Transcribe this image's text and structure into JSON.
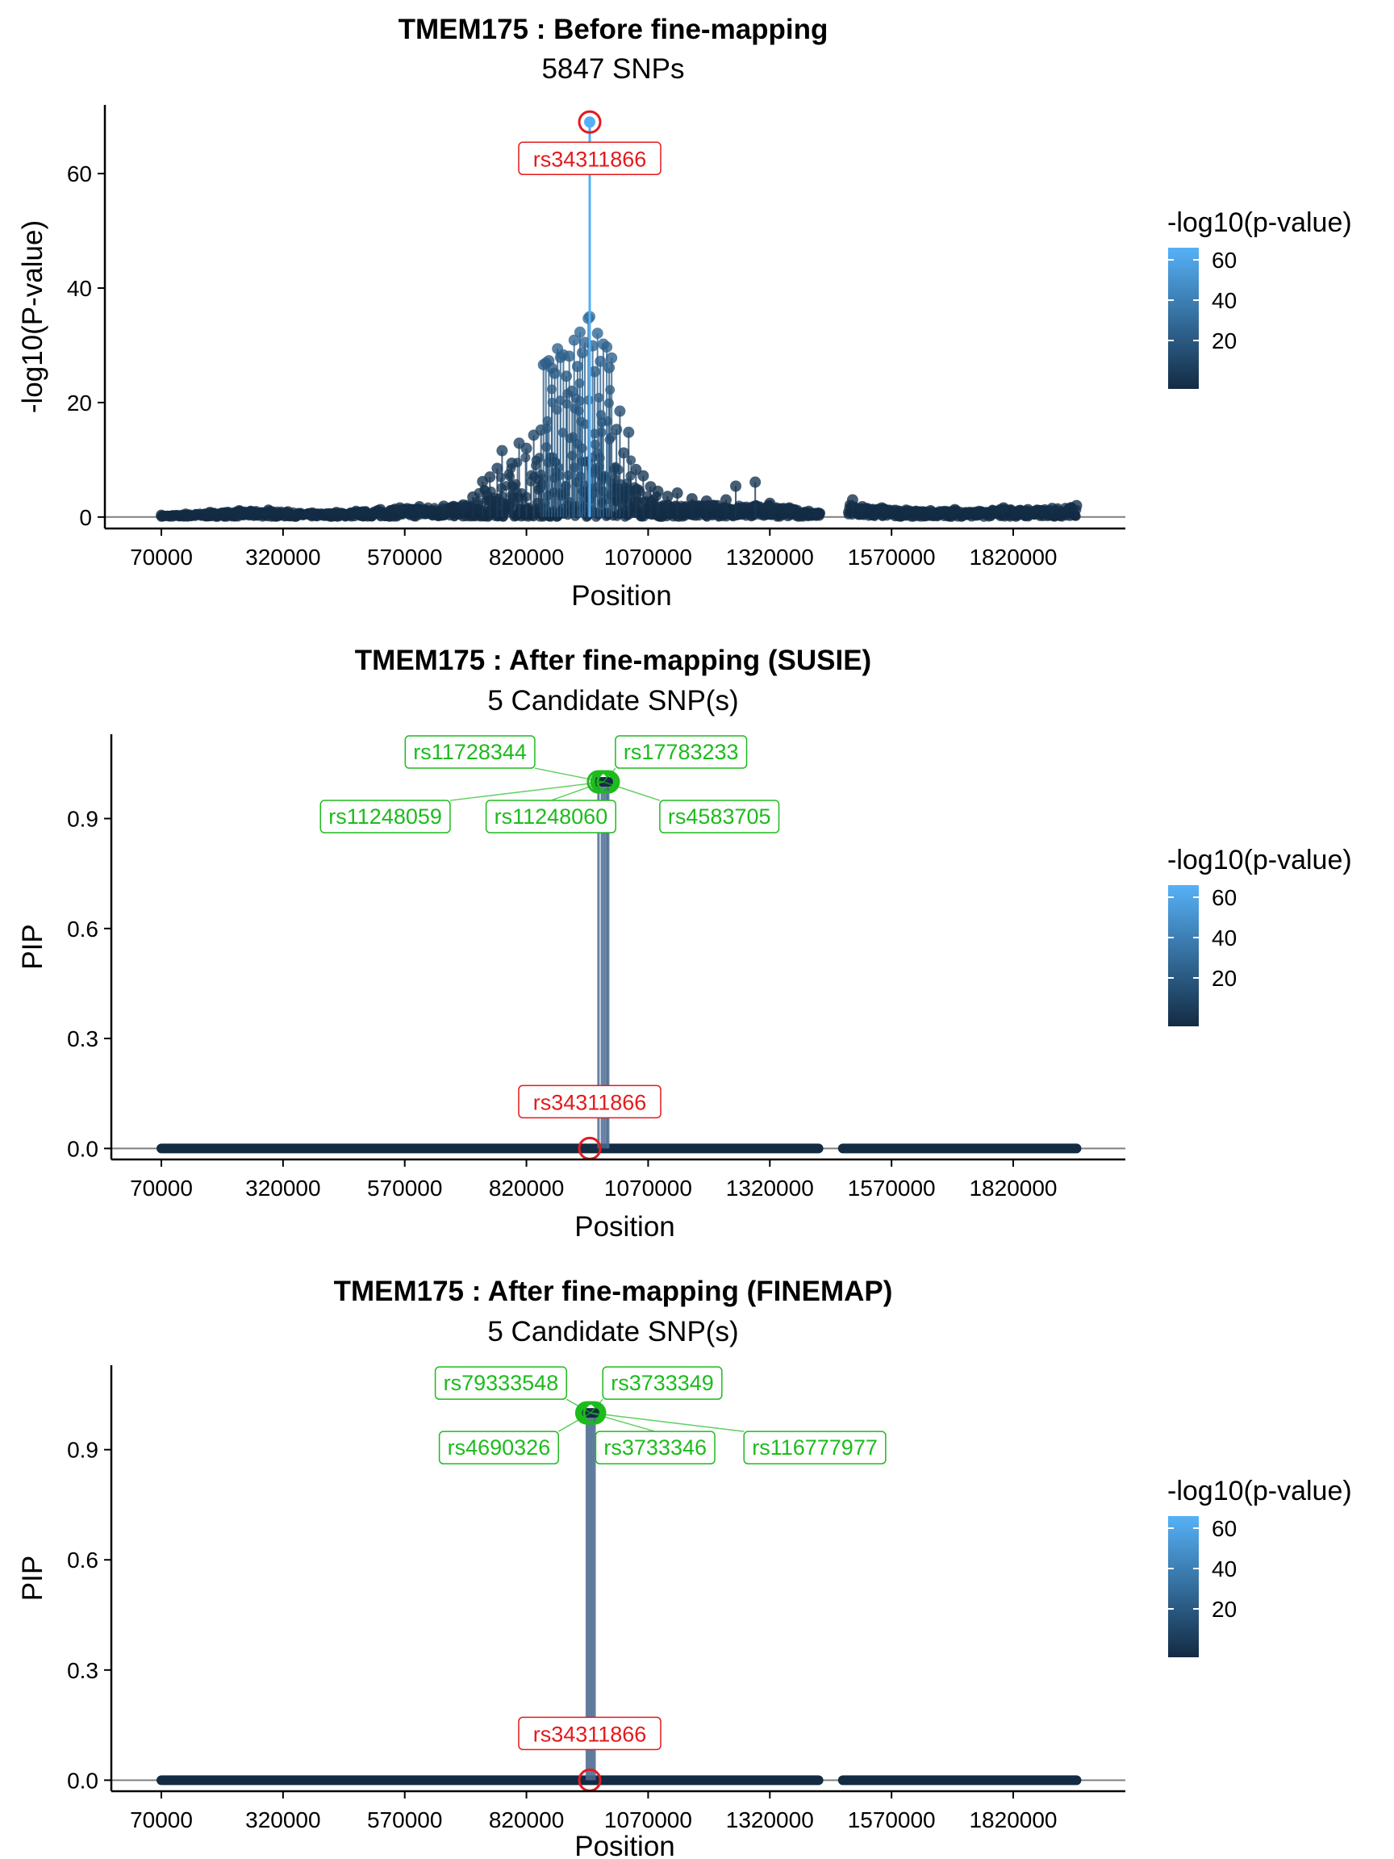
{
  "colors": {
    "low": "#132b43",
    "high": "#56b1f7",
    "lead_snp": "#e41a1c",
    "credible_snp": "#1dbb1d",
    "baseline": "#7f7f7f",
    "axis": "#000000"
  },
  "legend": {
    "title": "-log10(p-value)",
    "ticks": [
      20,
      40,
      60
    ],
    "range": [
      0,
      70
    ]
  },
  "chart_data": [
    {
      "type": "scatter",
      "title": "TMEM175 : Before fine-mapping",
      "subtitle": "5847 SNPs",
      "xlabel": "Position",
      "ylabel": "-log10(P-value)",
      "xlim": [
        70000,
        1950000
      ],
      "ylim": [
        -2,
        72
      ],
      "x_ticks": [
        70000,
        320000,
        570000,
        820000,
        1070000,
        1320000,
        1570000,
        1820000
      ],
      "y_ticks": [
        0,
        20,
        40,
        60
      ],
      "y_tick_labels": [
        "0",
        "20",
        "40",
        "60"
      ],
      "stems": true,
      "baseline": 0,
      "points": [
        [
          70000,
          0.3
        ],
        [
          120000,
          0.5
        ],
        [
          170000,
          0.8
        ],
        [
          230000,
          1.1
        ],
        [
          290000,
          1.2
        ],
        [
          330000,
          0.9
        ],
        [
          380000,
          0.7
        ],
        [
          430000,
          0.8
        ],
        [
          470000,
          1.0
        ],
        [
          520000,
          1.3
        ],
        [
          560000,
          1.6
        ],
        [
          600000,
          1.8
        ],
        [
          650000,
          1.9
        ],
        [
          690000,
          2.1
        ],
        [
          710000,
          3.5
        ],
        [
          730000,
          6.2
        ],
        [
          745000,
          7.0
        ],
        [
          760000,
          8.5
        ],
        [
          770000,
          11.6
        ],
        [
          790000,
          9.4
        ],
        [
          805000,
          12.9
        ],
        [
          820000,
          12.0
        ],
        [
          835000,
          14.3
        ],
        [
          850000,
          15.2
        ],
        [
          855000,
          26.6
        ],
        [
          860000,
          26.9
        ],
        [
          866000,
          27.3
        ],
        [
          872000,
          26.0
        ],
        [
          878000,
          25.1
        ],
        [
          884000,
          29.4
        ],
        [
          890000,
          27.9
        ],
        [
          896000,
          28.3
        ],
        [
          902000,
          24.6
        ],
        [
          908000,
          28.1
        ],
        [
          914000,
          22.0
        ],
        [
          918000,
          30.9
        ],
        [
          925000,
          26.3
        ],
        [
          930000,
          32.3
        ],
        [
          935000,
          28.7
        ],
        [
          940000,
          30.5
        ],
        [
          947000,
          34.7
        ],
        [
          950000,
          35.0
        ],
        [
          956000,
          29.9
        ],
        [
          960000,
          25.4
        ],
        [
          966000,
          32.1
        ],
        [
          972000,
          27.2
        ],
        [
          978000,
          30.2
        ],
        [
          985000,
          29.7
        ],
        [
          990000,
          26.1
        ],
        [
          995000,
          27.8
        ],
        [
          1005000,
          15.3
        ],
        [
          1012000,
          18.5
        ],
        [
          1020000,
          11.2
        ],
        [
          1030000,
          14.8
        ],
        [
          1045000,
          8.3
        ],
        [
          1060000,
          7.2
        ],
        [
          1075000,
          5.3
        ],
        [
          1090000,
          4.5
        ],
        [
          1110000,
          3.6
        ],
        [
          1130000,
          4.2
        ],
        [
          1160000,
          3.2
        ],
        [
          1190000,
          2.8
        ],
        [
          1230000,
          3.0
        ],
        [
          1250000,
          5.4
        ],
        [
          1290000,
          6.1
        ],
        [
          1320000,
          2.4
        ],
        [
          1360000,
          1.6
        ],
        [
          1400000,
          1.0
        ],
        [
          1420000,
          0.7
        ],
        [
          1490000,
          3.0
        ],
        [
          1510000,
          1.8
        ],
        [
          1550000,
          1.6
        ],
        [
          1600000,
          1.2
        ],
        [
          1650000,
          1.1
        ],
        [
          1700000,
          1.3
        ],
        [
          1750000,
          1.0
        ],
        [
          1800000,
          1.6
        ],
        [
          1850000,
          1.3
        ],
        [
          1900000,
          1.5
        ],
        [
          1950000,
          2.0
        ]
      ],
      "lead": {
        "label": "rs34311866",
        "x": 950000,
        "y": 69.0,
        "logp": 69.0
      }
    },
    {
      "type": "scatter",
      "title": "TMEM175 : After fine-mapping (SUSIE)",
      "subtitle": "5 Candidate SNP(s)",
      "xlabel": "Position",
      "ylabel": "PIP",
      "xlim": [
        70000,
        1950000
      ],
      "ylim": [
        -0.03,
        1.13
      ],
      "x_ticks": [
        70000,
        320000,
        570000,
        820000,
        1070000,
        1320000,
        1570000,
        1820000
      ],
      "y_ticks": [
        0.0,
        0.3,
        0.6,
        0.9
      ],
      "y_tick_labels": [
        "0.0",
        "0.3",
        "0.6",
        "0.9"
      ],
      "stems": false,
      "baseline": 0,
      "flat_segments": [
        [
          70000,
          1420000
        ],
        [
          1470000,
          1950000
        ]
      ],
      "candidate_x_spread": [
        968000,
        988000
      ],
      "candidates": [
        {
          "label": "rs11728344",
          "x": 975000,
          "y": 1.0
        },
        {
          "label": "rs17783233",
          "x": 985000,
          "y": 1.0
        },
        {
          "label": "rs11248059",
          "x": 968000,
          "y": 1.0
        },
        {
          "label": "rs11248060",
          "x": 980000,
          "y": 1.0
        },
        {
          "label": "rs4583705",
          "x": 988000,
          "y": 1.0
        }
      ],
      "lead": {
        "label": "rs34311866",
        "x": 950000,
        "y": 0.0
      }
    },
    {
      "type": "scatter",
      "title": "TMEM175 : After fine-mapping (FINEMAP)",
      "subtitle": "5 Candidate SNP(s)",
      "xlabel": "Position",
      "ylabel": "PIP",
      "xlim": [
        70000,
        1950000
      ],
      "ylim": [
        -0.03,
        1.13
      ],
      "x_ticks": [
        70000,
        320000,
        570000,
        820000,
        1070000,
        1320000,
        1570000,
        1820000
      ],
      "y_ticks": [
        0.0,
        0.3,
        0.6,
        0.9
      ],
      "y_tick_labels": [
        "0.0",
        "0.3",
        "0.6",
        "0.9"
      ],
      "stems": false,
      "baseline": 0,
      "flat_segments": [
        [
          70000,
          1420000
        ],
        [
          1470000,
          1950000
        ]
      ],
      "candidate_x_spread": [
        944000,
        960000
      ],
      "candidates": [
        {
          "label": "rs79333548",
          "x": 948000,
          "y": 1.0
        },
        {
          "label": "rs3733349",
          "x": 956000,
          "y": 1.0
        },
        {
          "label": "rs4690326",
          "x": 944000,
          "y": 1.0
        },
        {
          "label": "rs3733346",
          "x": 952000,
          "y": 1.0
        },
        {
          "label": "rs116777977",
          "x": 960000,
          "y": 1.0
        }
      ],
      "lead": {
        "label": "rs34311866",
        "x": 950000,
        "y": 0.0
      }
    }
  ]
}
